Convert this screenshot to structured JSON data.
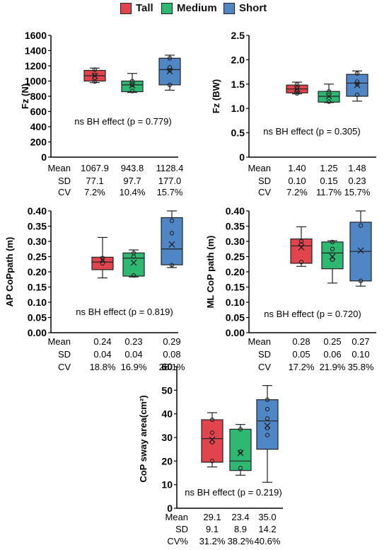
{
  "legend": [
    {
      "label": "Tall",
      "color": "#e0454d"
    },
    {
      "label": "Medium",
      "color": "#2eb872"
    },
    {
      "label": "Short",
      "color": "#4f86c6"
    }
  ],
  "chart_data": [
    {
      "type": "boxplot",
      "ylabel": "Fz (N)",
      "ylim": [
        0,
        1600
      ],
      "yticks": [
        "0",
        "200",
        "400",
        "600",
        "800",
        "1000",
        "1200",
        "1400",
        "1600"
      ],
      "annotation": "ns BH effect (p = 0.779)",
      "series": [
        {
          "name": "Tall",
          "color": "#e0454d",
          "min": 980,
          "q1": 1000,
          "median": 1070,
          "q3": 1140,
          "max": 1170,
          "mean": 1067.9,
          "points": [
            1150,
            1080,
            1040,
            995
          ]
        },
        {
          "name": "Medium",
          "color": "#2eb872",
          "min": 850,
          "q1": 860,
          "median": 950,
          "q3": 1000,
          "max": 1100,
          "mean": 943.8,
          "points": [
            1000,
            950,
            870
          ]
        },
        {
          "name": "Short",
          "color": "#4f86c6",
          "min": 880,
          "q1": 950,
          "median": 1150,
          "q3": 1300,
          "max": 1340,
          "mean": 1128.4,
          "points": [
            1300,
            1180,
            1140,
            950
          ]
        }
      ],
      "stats": {
        "row_labels": [
          "Mean",
          "SD",
          "CV"
        ],
        "columns": [
          [
            "1067.9",
            "77.1",
            "7.2%"
          ],
          [
            "943.8",
            "97.7",
            "10.4%"
          ],
          [
            "1128.4",
            "177.0",
            "15.7%"
          ]
        ]
      }
    },
    {
      "type": "boxplot",
      "ylabel": "Fz (BW)",
      "ylim": [
        0,
        2.5
      ],
      "yticks": [
        "0",
        "0.5",
        "1.0",
        "1.5",
        "2.0",
        "2.5"
      ],
      "annotation": "ns BH effect (p = 0.305)",
      "series": [
        {
          "name": "Tall",
          "color": "#e0454d",
          "min": 1.3,
          "q1": 1.32,
          "median": 1.4,
          "q3": 1.48,
          "max": 1.54,
          "mean": 1.4,
          "points": [
            1.5,
            1.42,
            1.37,
            1.31
          ]
        },
        {
          "name": "Medium",
          "color": "#2eb872",
          "min": 1.12,
          "q1": 1.13,
          "median": 1.25,
          "q3": 1.35,
          "max": 1.5,
          "mean": 1.25,
          "points": [
            1.35,
            1.14
          ]
        },
        {
          "name": "Short",
          "color": "#4f86c6",
          "min": 1.15,
          "q1": 1.25,
          "median": 1.52,
          "q3": 1.7,
          "max": 1.77,
          "mean": 1.48,
          "points": [
            1.72,
            1.55,
            1.5,
            1.28
          ]
        }
      ],
      "stats": {
        "row_labels": [
          "Mean",
          "SD",
          "CV"
        ],
        "columns": [
          [
            "1.40",
            "0.10",
            "7.2%"
          ],
          [
            "1.25",
            "0.15",
            "11.7%"
          ],
          [
            "1.48",
            "0.23",
            "15.7%"
          ]
        ]
      }
    },
    {
      "type": "boxplot",
      "ylabel": "AP CoPpath (m)",
      "ylim": [
        0,
        0.4
      ],
      "yticks": [
        "0.00",
        "0.05",
        "0.10",
        "0.15",
        "0.20",
        "0.25",
        "0.30",
        "0.35",
        "0.40"
      ],
      "annotation": "ns BH effect (p = 0.819)",
      "series": [
        {
          "name": "Tall",
          "color": "#e0454d",
          "min": 0.18,
          "q1": 0.207,
          "median": 0.232,
          "q3": 0.248,
          "max": 0.313,
          "mean": 0.24,
          "points": [
            0.245,
            0.228
          ]
        },
        {
          "name": "Medium",
          "color": "#2eb872",
          "min": 0.183,
          "q1": 0.186,
          "median": 0.245,
          "q3": 0.262,
          "max": 0.272,
          "mean": 0.23,
          "points": [
            0.262,
            0.25,
            0.188
          ]
        },
        {
          "name": "Short",
          "color": "#4f86c6",
          "min": 0.214,
          "q1": 0.223,
          "median": 0.275,
          "q3": 0.378,
          "max": 0.4,
          "mean": 0.29,
          "points": [
            0.368,
            0.327,
            0.222
          ]
        }
      ],
      "stats": {
        "row_labels": [
          "Mean",
          "SD",
          "CV"
        ],
        "columns": [
          [
            "0.24",
            "0.04",
            "18.8%"
          ],
          [
            "0.23",
            "0.04",
            "16.9%"
          ],
          [
            "0.29",
            "0.08",
            "26.1%"
          ]
        ]
      }
    },
    {
      "type": "boxplot",
      "ylabel": "ML CoP path (m)",
      "ylim": [
        0,
        0.4
      ],
      "yticks": [
        "0.00",
        "0.05",
        "0.10",
        "0.15",
        "0.20",
        "0.25",
        "0.30",
        "0.35",
        "0.40"
      ],
      "annotation": "ns BH effect (p = 0.720)",
      "series": [
        {
          "name": "Tall",
          "color": "#e0454d",
          "min": 0.218,
          "q1": 0.228,
          "median": 0.285,
          "q3": 0.308,
          "max": 0.348,
          "mean": 0.28,
          "points": [
            0.3,
            0.29,
            0.232
          ]
        },
        {
          "name": "Medium",
          "color": "#2eb872",
          "min": 0.163,
          "q1": 0.21,
          "median": 0.262,
          "q3": 0.298,
          "max": 0.302,
          "mean": 0.25,
          "points": [
            0.298,
            0.275,
            0.24
          ]
        },
        {
          "name": "Short",
          "color": "#4f86c6",
          "min": 0.153,
          "q1": 0.17,
          "median": 0.267,
          "q3": 0.363,
          "max": 0.4,
          "mean": 0.27,
          "points": [
            0.352,
            0.17
          ]
        }
      ],
      "stats": {
        "row_labels": [
          "Mean",
          "SD",
          "CV"
        ],
        "columns": [
          [
            "0.28",
            "0.05",
            "17.2%"
          ],
          [
            "0.25",
            "0.06",
            "21.9%"
          ],
          [
            "0.27",
            "0.10",
            "35.8%"
          ]
        ]
      }
    },
    {
      "type": "boxplot",
      "ylabel": "CoP sway area(cm²)",
      "ylim": [
        0,
        60
      ],
      "yticks": [
        "0",
        "10",
        "20",
        "30",
        "40",
        "50",
        "60"
      ],
      "annotation": "ns BH effect (p = 0.219)",
      "series": [
        {
          "name": "Tall",
          "color": "#e0454d",
          "min": 17.5,
          "q1": 19.5,
          "median": 29.5,
          "q3": 37.5,
          "max": 40.5,
          "mean": 29.1,
          "points": [
            37.5,
            32,
            28,
            20
          ]
        },
        {
          "name": "Medium",
          "color": "#2eb872",
          "min": 14,
          "q1": 16,
          "median": 20,
          "q3": 33.5,
          "max": 35.5,
          "mean": 23.4,
          "points": [
            33.5,
            24,
            17
          ]
        },
        {
          "name": "Short",
          "color": "#4f86c6",
          "min": 11,
          "q1": 25,
          "median": 37,
          "q3": 46,
          "max": 52,
          "mean": 35.0,
          "points": [
            46,
            42,
            38,
            34,
            31
          ]
        }
      ],
      "stats": {
        "row_labels": [
          "Mean",
          "SD",
          "CV%"
        ],
        "columns": [
          [
            "29.1",
            "9.1",
            "31.2%"
          ],
          [
            "23.4",
            "8.9",
            "38.2%"
          ],
          [
            "35.0",
            "14.2",
            "40.6%"
          ]
        ]
      }
    }
  ]
}
